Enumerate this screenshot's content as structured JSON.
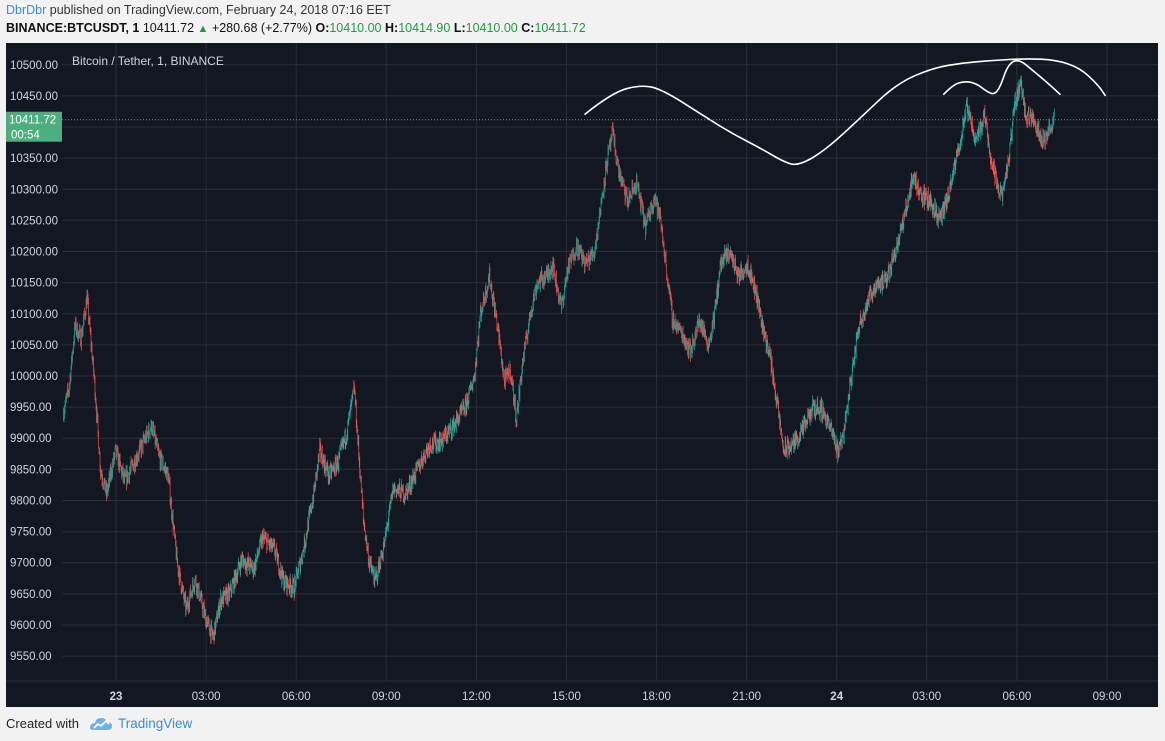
{
  "header": {
    "author": "DbrDbr",
    "published_text": " published on TradingView.com, February 24, 2018 07:16 EET",
    "symbol": "BINANCE:BTCUSDT, 1",
    "last": "10411.72",
    "change": "+280.68 (+2.77%)",
    "open_label": "O:",
    "open": "10410.00",
    "high_label": "H:",
    "high": "10414.90",
    "low_label": "L:",
    "low": "10410.00",
    "close_label": "C:",
    "close": "10411.72"
  },
  "footer": {
    "created_with": "Created with",
    "brand": "TradingView"
  },
  "colors": {
    "background": "#131722",
    "grid": "#2a2e39",
    "up": "#26a69a",
    "down": "#ef5350",
    "price_tag": "#4caf7d",
    "drawing": "#ffffff"
  },
  "chart_data": {
    "type": "candlestick",
    "title": "Bitcoin / Tether, 1, BINANCE",
    "ylim": [
      9510,
      10535
    ],
    "y_ticks": [
      9550,
      9600,
      9650,
      9700,
      9750,
      9800,
      9850,
      9900,
      9950,
      10000,
      10050,
      10100,
      10150,
      10200,
      10250,
      10300,
      10350,
      10400,
      10450,
      10500
    ],
    "x_ticks": [
      {
        "label": "23",
        "hour": 0,
        "bold": true
      },
      {
        "label": "03:00",
        "hour": 3
      },
      {
        "label": "06:00",
        "hour": 6
      },
      {
        "label": "09:00",
        "hour": 9
      },
      {
        "label": "12:00",
        "hour": 12
      },
      {
        "label": "15:00",
        "hour": 15
      },
      {
        "label": "18:00",
        "hour": 18
      },
      {
        "label": "21:00",
        "hour": 21
      },
      {
        "label": "24",
        "hour": 24,
        "bold": true
      },
      {
        "label": "03:00",
        "hour": 27
      },
      {
        "label": "06:00",
        "hour": 30
      },
      {
        "label": "09:00",
        "hour": 33
      }
    ],
    "xlim_hours": [
      -1.8,
      34.7
    ],
    "last_price": "10411.72",
    "last_price_value": 10411.72,
    "countdown": "00:54",
    "path_points": [
      [
        -1.75,
        9940
      ],
      [
        -1.55,
        9980
      ],
      [
        -1.35,
        10080
      ],
      [
        -1.15,
        10060
      ],
      [
        -0.95,
        10125
      ],
      [
        -0.7,
        9990
      ],
      [
        -0.5,
        9850
      ],
      [
        -0.3,
        9810
      ],
      [
        0.0,
        9880
      ],
      [
        0.3,
        9830
      ],
      [
        0.6,
        9860
      ],
      [
        1.0,
        9900
      ],
      [
        1.2,
        9920
      ],
      [
        1.45,
        9870
      ],
      [
        1.75,
        9840
      ],
      [
        2.05,
        9700
      ],
      [
        2.35,
        9625
      ],
      [
        2.65,
        9675
      ],
      [
        3.0,
        9610
      ],
      [
        3.25,
        9580
      ],
      [
        3.5,
        9640
      ],
      [
        3.8,
        9650
      ],
      [
        4.2,
        9705
      ],
      [
        4.6,
        9690
      ],
      [
        4.9,
        9740
      ],
      [
        5.3,
        9720
      ],
      [
        5.6,
        9670
      ],
      [
        5.95,
        9660
      ],
      [
        6.25,
        9720
      ],
      [
        6.6,
        9810
      ],
      [
        6.8,
        9880
      ],
      [
        7.1,
        9840
      ],
      [
        7.4,
        9860
      ],
      [
        7.7,
        9910
      ],
      [
        7.95,
        9980
      ],
      [
        8.25,
        9770
      ],
      [
        8.45,
        9700
      ],
      [
        8.65,
        9670
      ],
      [
        8.95,
        9730
      ],
      [
        9.25,
        9820
      ],
      [
        9.65,
        9810
      ],
      [
        10.05,
        9850
      ],
      [
        10.45,
        9890
      ],
      [
        10.85,
        9895
      ],
      [
        11.25,
        9920
      ],
      [
        11.65,
        9950
      ],
      [
        11.95,
        10000
      ],
      [
        12.15,
        10100
      ],
      [
        12.45,
        10160
      ],
      [
        12.75,
        10070
      ],
      [
        12.95,
        9990
      ],
      [
        13.15,
        10010
      ],
      [
        13.35,
        9930
      ],
      [
        13.55,
        10020
      ],
      [
        13.85,
        10110
      ],
      [
        14.05,
        10150
      ],
      [
        14.35,
        10160
      ],
      [
        14.55,
        10180
      ],
      [
        14.85,
        10110
      ],
      [
        15.05,
        10170
      ],
      [
        15.35,
        10210
      ],
      [
        15.65,
        10180
      ],
      [
        15.95,
        10200
      ],
      [
        16.15,
        10270
      ],
      [
        16.35,
        10340
      ],
      [
        16.55,
        10390
      ],
      [
        16.75,
        10330
      ],
      [
        17.05,
        10280
      ],
      [
        17.35,
        10310
      ],
      [
        17.65,
        10240
      ],
      [
        17.95,
        10290
      ],
      [
        18.15,
        10250
      ],
      [
        18.35,
        10170
      ],
      [
        18.55,
        10090
      ],
      [
        18.85,
        10070
      ],
      [
        19.15,
        10040
      ],
      [
        19.45,
        10090
      ],
      [
        19.75,
        10050
      ],
      [
        19.95,
        10100
      ],
      [
        20.15,
        10180
      ],
      [
        20.45,
        10200
      ],
      [
        20.75,
        10160
      ],
      [
        21.05,
        10180
      ],
      [
        21.35,
        10130
      ],
      [
        21.55,
        10080
      ],
      [
        21.8,
        10030
      ],
      [
        22.05,
        9950
      ],
      [
        22.25,
        9880
      ],
      [
        22.55,
        9890
      ],
      [
        22.85,
        9910
      ],
      [
        23.25,
        9950
      ],
      [
        23.55,
        9945
      ],
      [
        23.85,
        9910
      ],
      [
        24.05,
        9880
      ],
      [
        24.25,
        9910
      ],
      [
        24.45,
        9980
      ],
      [
        24.75,
        10080
      ],
      [
        25.05,
        10120
      ],
      [
        25.35,
        10150
      ],
      [
        25.65,
        10150
      ],
      [
        25.95,
        10200
      ],
      [
        26.25,
        10250
      ],
      [
        26.55,
        10320
      ],
      [
        26.85,
        10290
      ],
      [
        27.15,
        10280
      ],
      [
        27.45,
        10250
      ],
      [
        27.75,
        10290
      ],
      [
        28.05,
        10360
      ],
      [
        28.35,
        10430
      ],
      [
        28.65,
        10380
      ],
      [
        28.95,
        10420
      ],
      [
        29.15,
        10350
      ],
      [
        29.35,
        10310
      ],
      [
        29.55,
        10290
      ],
      [
        29.75,
        10350
      ],
      [
        29.95,
        10440
      ],
      [
        30.15,
        10470
      ],
      [
        30.35,
        10410
      ],
      [
        30.55,
        10420
      ],
      [
        30.75,
        10390
      ],
      [
        30.95,
        10380
      ],
      [
        31.25,
        10411
      ]
    ],
    "drawings": [
      {
        "name": "left-arc",
        "points": [
          [
            15.6,
            10420
          ],
          [
            16.5,
            10455
          ],
          [
            17.5,
            10468
          ],
          [
            18.2,
            10460
          ],
          [
            19.5,
            10420
          ],
          [
            20.5,
            10390
          ],
          [
            21.5,
            10365
          ],
          [
            22.2,
            10345
          ],
          [
            22.7,
            10337
          ],
          [
            23.6,
            10362
          ],
          [
            24.8,
            10415
          ],
          [
            26.0,
            10470
          ],
          [
            27.2,
            10495
          ],
          [
            28.2,
            10503
          ],
          [
            29.2,
            10507
          ],
          [
            30.3,
            10510
          ],
          [
            31.3,
            10508
          ],
          [
            32.1,
            10495
          ],
          [
            32.7,
            10468
          ],
          [
            32.95,
            10450
          ]
        ]
      },
      {
        "name": "small-left-arc",
        "points": [
          [
            27.55,
            10452
          ],
          [
            27.85,
            10467
          ],
          [
            28.25,
            10474
          ],
          [
            28.65,
            10470
          ],
          [
            29.0,
            10457
          ],
          [
            29.25,
            10452
          ],
          [
            29.45,
            10465
          ],
          [
            29.7,
            10500
          ],
          [
            30.05,
            10510
          ],
          [
            30.55,
            10490
          ],
          [
            31.05,
            10470
          ],
          [
            31.45,
            10452
          ]
        ]
      }
    ]
  }
}
